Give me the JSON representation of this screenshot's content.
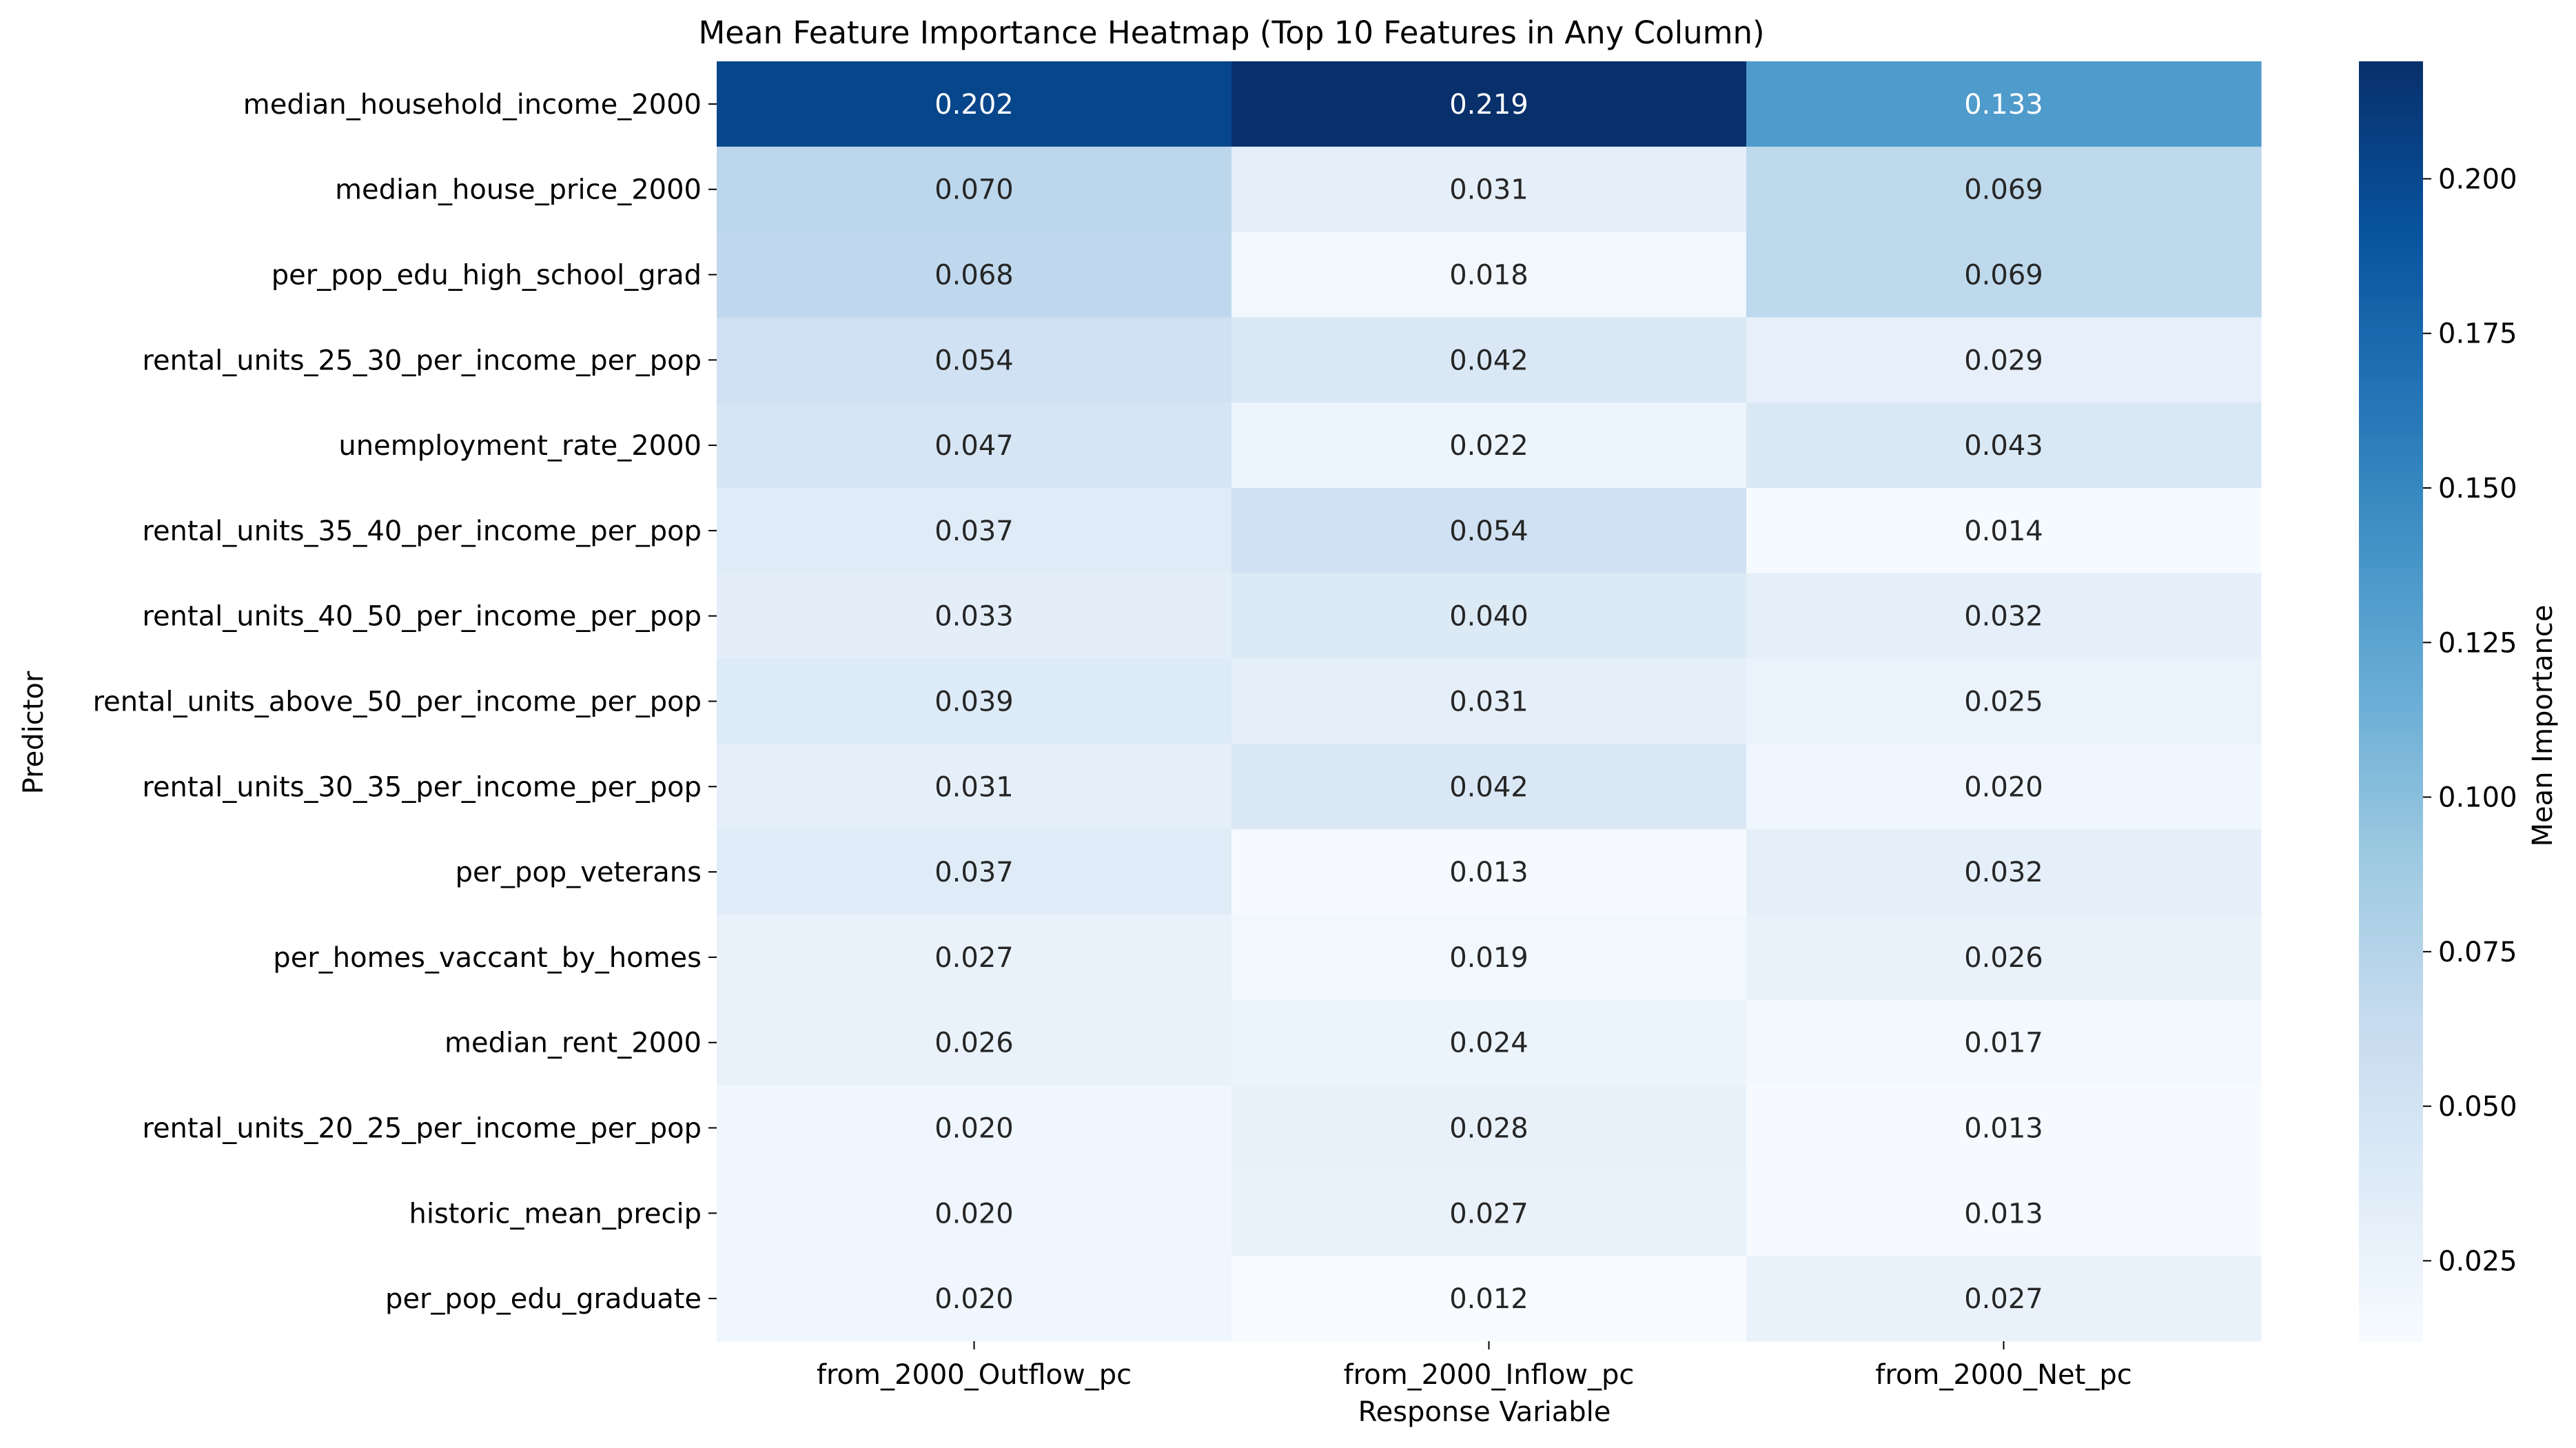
{
  "chart_data": {
    "type": "heatmap",
    "title": "Mean Feature Importance Heatmap (Top 10 Features in Any Column)",
    "xlabel": "Response Variable",
    "ylabel": "Predictor",
    "columns": [
      "from_2000_Outflow_pc",
      "from_2000_Inflow_pc",
      "from_2000_Net_pc"
    ],
    "rows": [
      "median_household_income_2000",
      "median_house_price_2000",
      "per_pop_edu_high_school_grad",
      "rental_units_25_30_per_income_per_pop",
      "unemployment_rate_2000",
      "rental_units_35_40_per_income_per_pop",
      "rental_units_40_50_per_income_per_pop",
      "rental_units_above_50_per_income_per_pop",
      "rental_units_30_35_per_income_per_pop",
      "per_pop_veterans",
      "per_homes_vaccant_by_homes",
      "median_rent_2000",
      "rental_units_20_25_per_income_per_pop",
      "historic_mean_precip",
      "per_pop_edu_graduate"
    ],
    "values": [
      [
        0.202,
        0.219,
        0.133
      ],
      [
        0.07,
        0.031,
        0.069
      ],
      [
        0.068,
        0.018,
        0.069
      ],
      [
        0.054,
        0.042,
        0.029
      ],
      [
        0.047,
        0.022,
        0.043
      ],
      [
        0.037,
        0.054,
        0.014
      ],
      [
        0.033,
        0.04,
        0.032
      ],
      [
        0.039,
        0.031,
        0.025
      ],
      [
        0.031,
        0.042,
        0.02
      ],
      [
        0.037,
        0.013,
        0.032
      ],
      [
        0.027,
        0.019,
        0.026
      ],
      [
        0.026,
        0.024,
        0.017
      ],
      [
        0.02,
        0.028,
        0.013
      ],
      [
        0.02,
        0.027,
        0.013
      ],
      [
        0.02,
        0.012,
        0.027
      ]
    ],
    "colorbar": {
      "label": "Mean Importance",
      "ticks": [
        0.025,
        0.05,
        0.075,
        0.1,
        0.125,
        0.15,
        0.175,
        0.2
      ],
      "tick_labels": [
        "0.025",
        "0.050",
        "0.075",
        "0.100",
        "0.125",
        "0.150",
        "0.175",
        "0.200"
      ],
      "vmin": 0.012,
      "vmax": 0.219,
      "colormap": "Blues"
    }
  }
}
